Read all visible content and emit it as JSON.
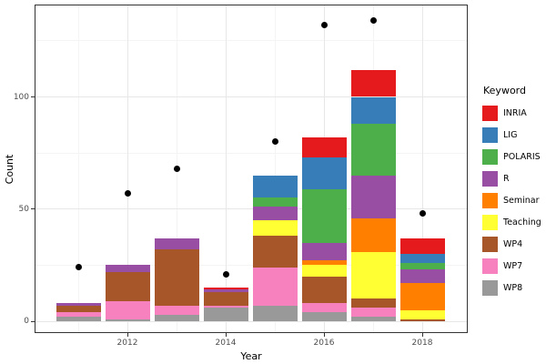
{
  "chart_data": {
    "type": "bar",
    "stacked": true,
    "title": "",
    "xlabel": "Year",
    "ylabel": "Count",
    "legend_title": "Keyword",
    "legend_position": "right",
    "grid": true,
    "x": [
      2011,
      2012,
      2013,
      2014,
      2015,
      2016,
      2017,
      2018
    ],
    "x_tick_labels": [
      "2012",
      "2014",
      "2016",
      "2018"
    ],
    "x_tick_indices": [
      1,
      3,
      5,
      7
    ],
    "x_minor_indices": [
      0,
      2,
      4,
      6
    ],
    "y_ticks": [
      0,
      50,
      100
    ],
    "y_minor_ticks": [
      25,
      75,
      125
    ],
    "ylim": [
      0,
      141
    ],
    "series": [
      {
        "name": "INRIA",
        "color": "#E41A1C",
        "values": [
          0,
          0,
          0,
          1,
          0,
          9,
          12,
          7
        ]
      },
      {
        "name": "LIG",
        "color": "#377EB8",
        "values": [
          0,
          0,
          0,
          0,
          10,
          14,
          12,
          4
        ]
      },
      {
        "name": "POLARIS",
        "color": "#4DAF4A",
        "values": [
          0,
          0,
          0,
          0,
          4,
          24,
          23,
          3
        ]
      },
      {
        "name": "R",
        "color": "#984EA3",
        "values": [
          1,
          3,
          5,
          1,
          6,
          8,
          19,
          6
        ]
      },
      {
        "name": "Seminar",
        "color": "#FF7F00",
        "values": [
          0,
          0,
          0,
          0,
          0,
          2,
          15,
          12
        ]
      },
      {
        "name": "Teaching",
        "color": "#FFFF33",
        "values": [
          0,
          0,
          0,
          0,
          7,
          5,
          21,
          4
        ]
      },
      {
        "name": "WP4",
        "color": "#A65628",
        "values": [
          3,
          13,
          25,
          6,
          14,
          12,
          4,
          1
        ]
      },
      {
        "name": "WP7",
        "color": "#F781BF",
        "values": [
          2,
          8,
          4,
          1,
          17,
          4,
          4,
          0
        ]
      },
      {
        "name": "WP8",
        "color": "#999999",
        "values": [
          2,
          1,
          3,
          6,
          7,
          4,
          2,
          0
        ]
      }
    ],
    "stack_order_bottom_to_top": [
      "WP8",
      "WP7",
      "WP4",
      "Teaching",
      "Seminar",
      "R",
      "POLARIS",
      "LIG",
      "INRIA"
    ],
    "bar_totals": [
      8,
      25,
      37,
      15,
      65,
      82,
      112,
      37
    ],
    "points": {
      "type": "scatter",
      "color": "#000000",
      "values": [
        24,
        57,
        68,
        21,
        80,
        132,
        134,
        48
      ]
    }
  }
}
